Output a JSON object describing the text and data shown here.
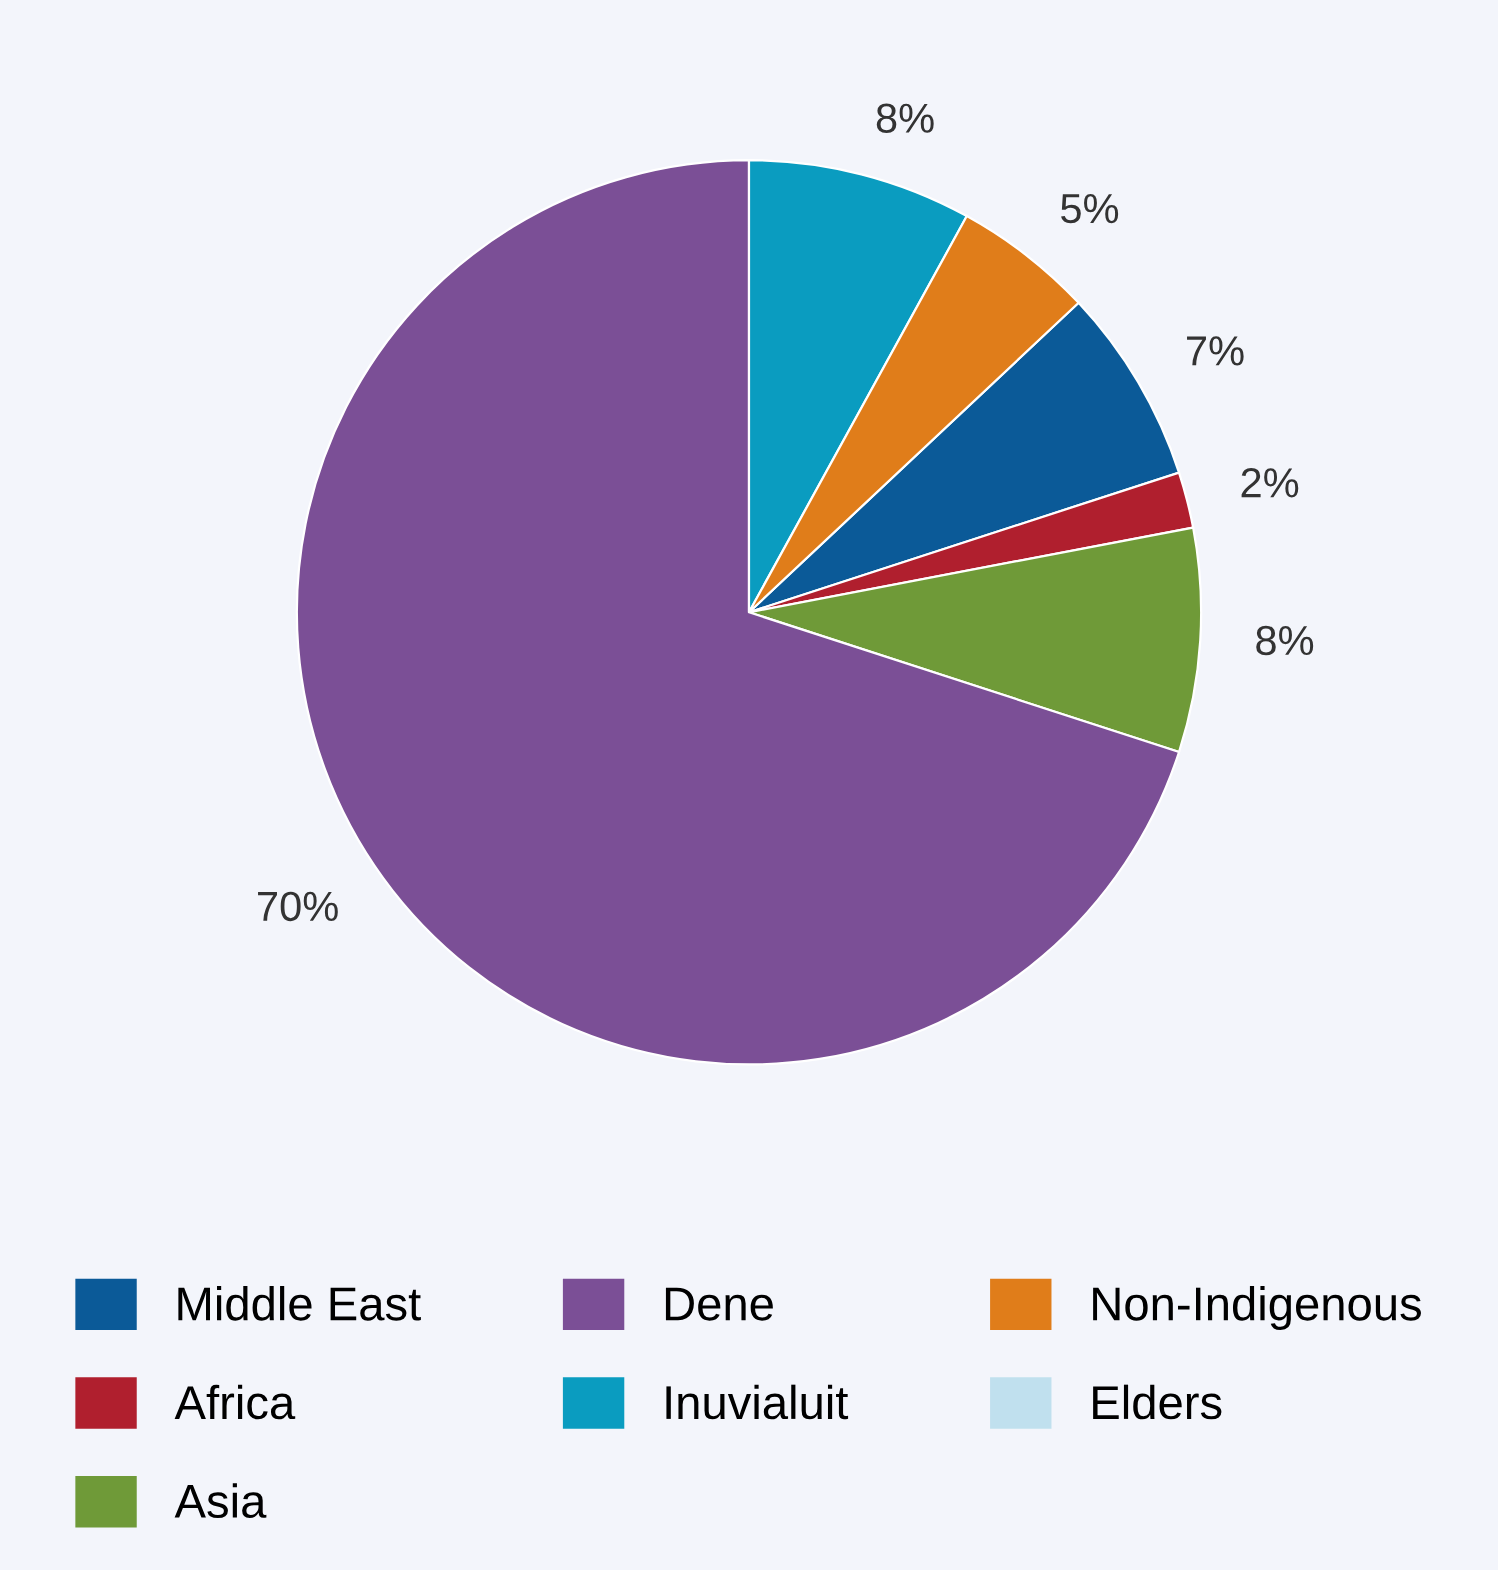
{
  "chart_data": {
    "type": "pie",
    "categories": [
      "Middle East",
      "Africa",
      "Asia",
      "Dene",
      "Inuvialuit",
      "Non-Indigenous",
      "Elders"
    ],
    "values": [
      7,
      2,
      8,
      70,
      8,
      5,
      0
    ],
    "colors": [
      "#0b5a98",
      "#b01f2e",
      "#6f9a38",
      "#7b4f96",
      "#0a9cc0",
      "#e07d1a",
      "#c0e0ee"
    ],
    "value_labels": [
      "7%",
      "2%",
      "8%",
      "70%",
      "8%",
      "5%",
      null
    ],
    "legend": "bottom"
  }
}
